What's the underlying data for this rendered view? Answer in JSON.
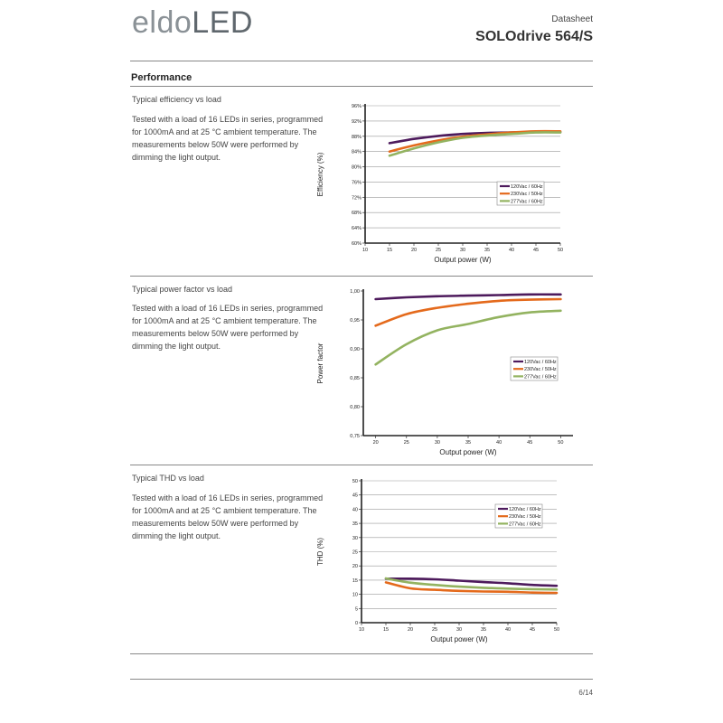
{
  "header": {
    "logo_part1": "eldo",
    "logo_part2": "LED",
    "doc_type": "Datasheet",
    "product": "SOLOdrive 564/S"
  },
  "section_title": "Performance",
  "blocks": [
    {
      "title": "Typical efficiency vs load",
      "description": "Tested with a load of 16 LEDs in series, programmed for 1000mA and at 25 °C ambient temperature. The measurements below 50W were performed by dimming the light output."
    },
    {
      "title": "Typical power factor vs load",
      "description": "Tested with a load of 16 LEDs in series, programmed for 1000mA and at 25 °C ambient temperature. The measurements below 50W were performed by dimming the light output."
    },
    {
      "title": "Typical THD vs load",
      "description": "Tested with a load of 16 LEDs in series, programmed for 1000mA and at 25 °C ambient temperature. The measurements below 50W were performed by dimming the light output."
    }
  ],
  "colors": {
    "purple": "#4d1a5c",
    "orange": "#e46a1c",
    "green": "#93b360"
  },
  "chart_data": [
    {
      "type": "line",
      "xlabel": "Output power (W)",
      "ylabel": "Efficiency (%)",
      "xlim": [
        10,
        50
      ],
      "ylim": [
        60,
        96
      ],
      "xticks": [
        "10",
        "15",
        "20",
        "25",
        "30",
        "35",
        "40",
        "45",
        "50"
      ],
      "yticks": [
        "60%",
        "64%",
        "68%",
        "72%",
        "76%",
        "80%",
        "84%",
        "88%",
        "92%",
        "96%"
      ],
      "grid": true,
      "legend_position": "right",
      "series": [
        {
          "name": "120Vac / 60Hz",
          "color": "#4d1a5c",
          "x": [
            15,
            20,
            25,
            30,
            35,
            40,
            45,
            50
          ],
          "y": [
            86.2,
            87.3,
            88.1,
            88.6,
            88.9,
            89.0,
            89.1,
            89.1
          ]
        },
        {
          "name": "230Vac / 50Hz",
          "color": "#e46a1c",
          "x": [
            15,
            20,
            25,
            30,
            35,
            40,
            45,
            50
          ],
          "y": [
            84.0,
            85.6,
            86.9,
            87.9,
            88.5,
            89.0,
            89.3,
            89.3
          ]
        },
        {
          "name": "277Vac / 60Hz",
          "color": "#93b360",
          "x": [
            15,
            20,
            25,
            30,
            35,
            40,
            45,
            50
          ],
          "y": [
            82.9,
            84.8,
            86.4,
            87.6,
            88.2,
            88.6,
            89.0,
            89.0
          ]
        }
      ]
    },
    {
      "type": "line",
      "xlabel": "Output power (W)",
      "ylabel": "Power factor",
      "xlim": [
        18,
        52
      ],
      "ylim": [
        0.75,
        1.0
      ],
      "xticks": [
        "20",
        "25",
        "30",
        "35",
        "40",
        "45",
        "50"
      ],
      "yticks": [
        "0,75",
        "0,80",
        "0,85",
        "0,90",
        "0,95",
        "1,00"
      ],
      "xtick_values": [
        20,
        25,
        30,
        35,
        40,
        45,
        50
      ],
      "ytick_values": [
        0.75,
        0.8,
        0.85,
        0.9,
        0.95,
        1.0
      ],
      "grid": false,
      "legend_position": "right",
      "series": [
        {
          "name": "120Vac / 60Hz",
          "color": "#4d1a5c",
          "x": [
            20,
            25,
            30,
            35,
            40,
            45,
            50
          ],
          "y": [
            0.986,
            0.989,
            0.991,
            0.992,
            0.993,
            0.994,
            0.994
          ]
        },
        {
          "name": "230Vac / 50Hz",
          "color": "#e46a1c",
          "x": [
            20,
            25,
            30,
            35,
            40,
            45,
            50
          ],
          "y": [
            0.94,
            0.96,
            0.971,
            0.978,
            0.983,
            0.985,
            0.986
          ]
        },
        {
          "name": "277Vac / 60Hz",
          "color": "#93b360",
          "x": [
            20,
            25,
            30,
            35,
            40,
            45,
            50
          ],
          "y": [
            0.873,
            0.908,
            0.932,
            0.943,
            0.955,
            0.963,
            0.966
          ]
        }
      ]
    },
    {
      "type": "line",
      "xlabel": "Output power (W)",
      "ylabel": "THD (%)",
      "xlim": [
        10,
        50
      ],
      "ylim": [
        0,
        50
      ],
      "xticks": [
        "10",
        "15",
        "20",
        "25",
        "30",
        "35",
        "40",
        "45",
        "50"
      ],
      "yticks": [
        "0",
        "5",
        "10",
        "15",
        "20",
        "25",
        "30",
        "35",
        "40",
        "45",
        "50"
      ],
      "grid": true,
      "legend_position": "right",
      "series": [
        {
          "name": "120Vac / 60Hz",
          "color": "#4d1a5c",
          "x": [
            15,
            20,
            25,
            30,
            35,
            40,
            45,
            50
          ],
          "y": [
            15.5,
            15.5,
            15.3,
            14.8,
            14.3,
            13.9,
            13.3,
            13.0
          ]
        },
        {
          "name": "230Vac / 50Hz",
          "color": "#e46a1c",
          "x": [
            15,
            20,
            25,
            30,
            35,
            40,
            45,
            50
          ],
          "y": [
            14.2,
            12.1,
            11.6,
            11.2,
            11.0,
            10.9,
            10.6,
            10.5
          ]
        },
        {
          "name": "277Vac / 60Hz",
          "color": "#93b360",
          "x": [
            15,
            20,
            25,
            30,
            35,
            40,
            45,
            50
          ],
          "y": [
            15.6,
            14.1,
            13.3,
            12.7,
            12.3,
            12.0,
            11.8,
            11.7
          ]
        }
      ]
    }
  ],
  "footer": {
    "page_number": "6/14"
  }
}
